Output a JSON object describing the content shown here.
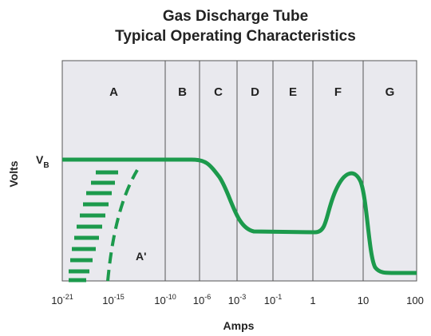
{
  "title": [
    "Gas Discharge Tube",
    "Typical Operating Characteristics"
  ],
  "regions": [
    "A",
    "B",
    "C",
    "D",
    "E",
    "F",
    "G"
  ],
  "x_ticks": [
    {
      "base": "10",
      "exp": "-21"
    },
    {
      "base": "10",
      "exp": "-15"
    },
    {
      "base": "10",
      "exp": "-10"
    },
    {
      "base": "10",
      "exp": "-6"
    },
    {
      "base": "10",
      "exp": "-3"
    },
    {
      "base": "10",
      "exp": "-1"
    },
    {
      "base": "1"
    },
    {
      "base": "10"
    },
    {
      "base": "100"
    }
  ],
  "x_label": "Amps",
  "y_label": "Volts",
  "vb_label": {
    "main": "V",
    "sub": "B"
  },
  "annotation": "A'"
}
